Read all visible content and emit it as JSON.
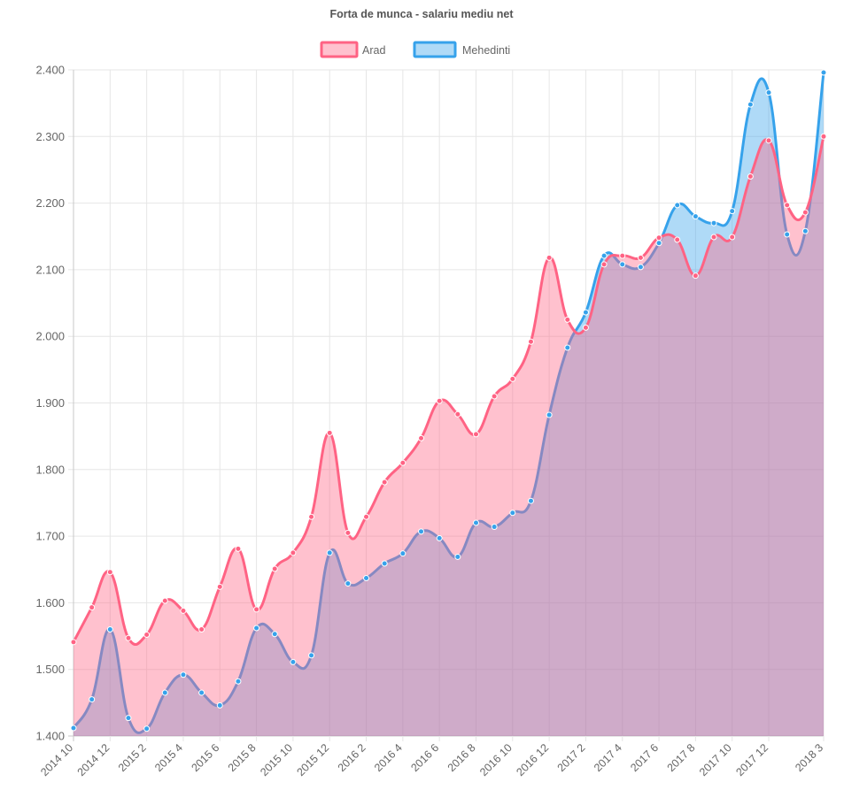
{
  "chart_data": {
    "type": "area",
    "title": "Forta de munca - salariu mediu net",
    "legend_position": "top",
    "grid": true,
    "smooth": true,
    "ylim": [
      1400,
      2400
    ],
    "y_ticks": [
      "1.400",
      "1.500",
      "1.600",
      "1.700",
      "1.800",
      "1.900",
      "2.000",
      "2.100",
      "2.200",
      "2.300",
      "2.400"
    ],
    "y_tick_values": [
      1400,
      1500,
      1600,
      1700,
      1800,
      1900,
      2000,
      2100,
      2200,
      2300,
      2400
    ],
    "categories": [
      "2014 10",
      "2014 11",
      "2014 12",
      "2015 1",
      "2015 2",
      "2015 3",
      "2015 4",
      "2015 5",
      "2015 6",
      "2015 7",
      "2015 8",
      "2015 9",
      "2015 10",
      "2015 11",
      "2015 12",
      "2016 1",
      "2016 2",
      "2016 3",
      "2016 4",
      "2016 5",
      "2016 6",
      "2016 7",
      "2016 8",
      "2016 9",
      "2016 10",
      "2016 11",
      "2016 12",
      "2017 1",
      "2017 2",
      "2017 3",
      "2017 4",
      "2017 5",
      "2017 6",
      "2017 7",
      "2017 8",
      "2017 9",
      "2017 10",
      "2017 11",
      "2017 12",
      "2018 1",
      "2018 2",
      "2018 3"
    ],
    "x_tick_labels": [
      "2014 10",
      "2014 12",
      "2015 2",
      "2015 4",
      "2015 6",
      "2015 8",
      "2015 10",
      "2015 12",
      "2016 2",
      "2016 4",
      "2016 6",
      "2016 8",
      "2016 10",
      "2016 12",
      "2017 2",
      "2017 4",
      "2017 6",
      "2017 8",
      "2017 10",
      "2017 12",
      "2018 3"
    ],
    "x_tick_indices": [
      0,
      2,
      4,
      6,
      8,
      10,
      12,
      14,
      16,
      18,
      20,
      22,
      24,
      26,
      28,
      30,
      32,
      34,
      36,
      38,
      41
    ],
    "series": [
      {
        "name": "Arad",
        "color": "#ff6384",
        "fill": "rgba(255,99,132,0.4)",
        "values": [
          1541,
          1593,
          1646,
          1547,
          1552,
          1603,
          1588,
          1560,
          1624,
          1681,
          1590,
          1651,
          1675,
          1729,
          1855,
          1705,
          1729,
          1781,
          1810,
          1847,
          1903,
          1883,
          1853,
          1910,
          1936,
          1992,
          2118,
          2025,
          2013,
          2108,
          2121,
          2118,
          2148,
          2145,
          2091,
          2149,
          2149,
          2240,
          2294,
          2197,
          2186,
          2300
        ]
      },
      {
        "name": "Mehedinti",
        "color": "#36a2eb",
        "fill": "rgba(54,162,235,0.4)",
        "values": [
          1412,
          1455,
          1560,
          1427,
          1411,
          1465,
          1492,
          1465,
          1446,
          1482,
          1562,
          1553,
          1511,
          1521,
          1675,
          1629,
          1637,
          1659,
          1674,
          1707,
          1697,
          1669,
          1720,
          1714,
          1735,
          1753,
          1882,
          1983,
          2036,
          2121,
          2108,
          2104,
          2140,
          2197,
          2180,
          2170,
          2188,
          2348,
          2366,
          2153,
          2158,
          2396
        ]
      }
    ]
  }
}
